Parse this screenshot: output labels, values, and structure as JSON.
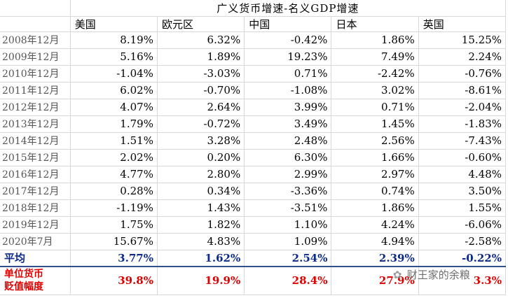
{
  "title": "广义货币增速-名义GDP增速",
  "columns": [
    "美国",
    "欧元区",
    "中国",
    "日本",
    "英国"
  ],
  "rows": [
    {
      "label": "2008年12月",
      "values": [
        "8.19%",
        "6.32%",
        "-0.42%",
        "1.86%",
        "15.25%"
      ]
    },
    {
      "label": "2009年12月",
      "values": [
        "5.16%",
        "1.89%",
        "19.23%",
        "7.49%",
        "2.24%"
      ]
    },
    {
      "label": "2010年12月",
      "values": [
        "-1.04%",
        "-3.03%",
        "0.71%",
        "-2.42%",
        "-0.76%"
      ]
    },
    {
      "label": "2011年12月",
      "values": [
        "6.02%",
        "-0.70%",
        "-1.08%",
        "3.02%",
        "-8.61%"
      ]
    },
    {
      "label": "2012年12月",
      "values": [
        "4.07%",
        "2.64%",
        "3.99%",
        "0.71%",
        "-2.04%"
      ]
    },
    {
      "label": "2013年12月",
      "values": [
        "1.79%",
        "-0.72%",
        "3.49%",
        "1.45%",
        "-1.83%"
      ]
    },
    {
      "label": "2014年12月",
      "values": [
        "1.51%",
        "3.28%",
        "2.48%",
        "2.56%",
        "-7.43%"
      ]
    },
    {
      "label": "2015年12月",
      "values": [
        "2.02%",
        "0.20%",
        "6.30%",
        "1.66%",
        "-0.60%"
      ]
    },
    {
      "label": "2016年12月",
      "values": [
        "4.77%",
        "2.80%",
        "2.99%",
        "2.97%",
        "4.48%"
      ]
    },
    {
      "label": "2017年12月",
      "values": [
        "0.28%",
        "0.34%",
        "-3.36%",
        "0.74%",
        "3.50%"
      ]
    },
    {
      "label": "2018年12月",
      "values": [
        "-1.19%",
        "1.43%",
        "-3.51%",
        "1.86%",
        "1.55%"
      ]
    },
    {
      "label": "2019年12月",
      "values": [
        "1.75%",
        "1.82%",
        "1.10%",
        "4.24%",
        "-6.06%"
      ]
    },
    {
      "label": "2020年7月",
      "values": [
        "15.67%",
        "4.83%",
        "1.09%",
        "4.94%",
        "-2.58%"
      ]
    }
  ],
  "average": {
    "label": "平均",
    "values": [
      "3.77%",
      "1.62%",
      "2.54%",
      "2.39%",
      "-0.22%"
    ]
  },
  "devaluation": {
    "label_line1": "单位货币",
    "label_line2": "贬值幅度",
    "values": [
      "39.8%",
      "19.9%",
      "28.4%",
      "27.9%",
      "3.3%"
    ]
  },
  "watermark": {
    "text": "财王家的余粮",
    "icon": "wechat-icon"
  },
  "colors": {
    "average_text": "#0b2a8a",
    "devaluation_text": "#e00000",
    "grid": "#d9d9d9"
  }
}
